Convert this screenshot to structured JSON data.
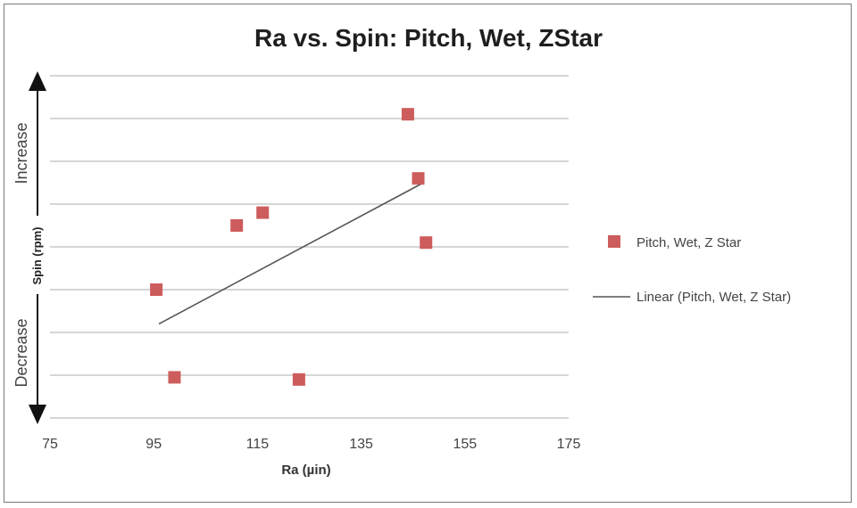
{
  "chart_data": {
    "type": "scatter",
    "title": "Ra vs. Spin: Pitch, Wet, ZStar",
    "xlabel": "Ra (µin)",
    "ylabel": "Spin (rpm)",
    "y_direction_labels": {
      "top": "Increase",
      "bottom": "Decrease"
    },
    "xlim": [
      75,
      175
    ],
    "xticks": [
      "75",
      "95",
      "115",
      "135",
      "155",
      "175"
    ],
    "ylim": [
      0,
      8
    ],
    "y_gridlines": 8,
    "grid": true,
    "legend_position": "right",
    "series": [
      {
        "name": "Pitch, Wet, Z Star",
        "marker": "square",
        "color": "#cd5c5c",
        "points": [
          {
            "x": 144,
            "y": 7.1
          },
          {
            "x": 146,
            "y": 5.6
          },
          {
            "x": 147.5,
            "y": 4.1
          },
          {
            "x": 116,
            "y": 4.8
          },
          {
            "x": 111,
            "y": 4.5
          },
          {
            "x": 95.5,
            "y": 3.0
          },
          {
            "x": 99,
            "y": 0.95
          },
          {
            "x": 123,
            "y": 0.9
          }
        ]
      }
    ],
    "trendline": {
      "name": "Linear (Pitch, Wet, Z Star)",
      "color": "#555555",
      "x": [
        96,
        147
      ],
      "y": [
        2.2,
        5.5
      ]
    }
  }
}
